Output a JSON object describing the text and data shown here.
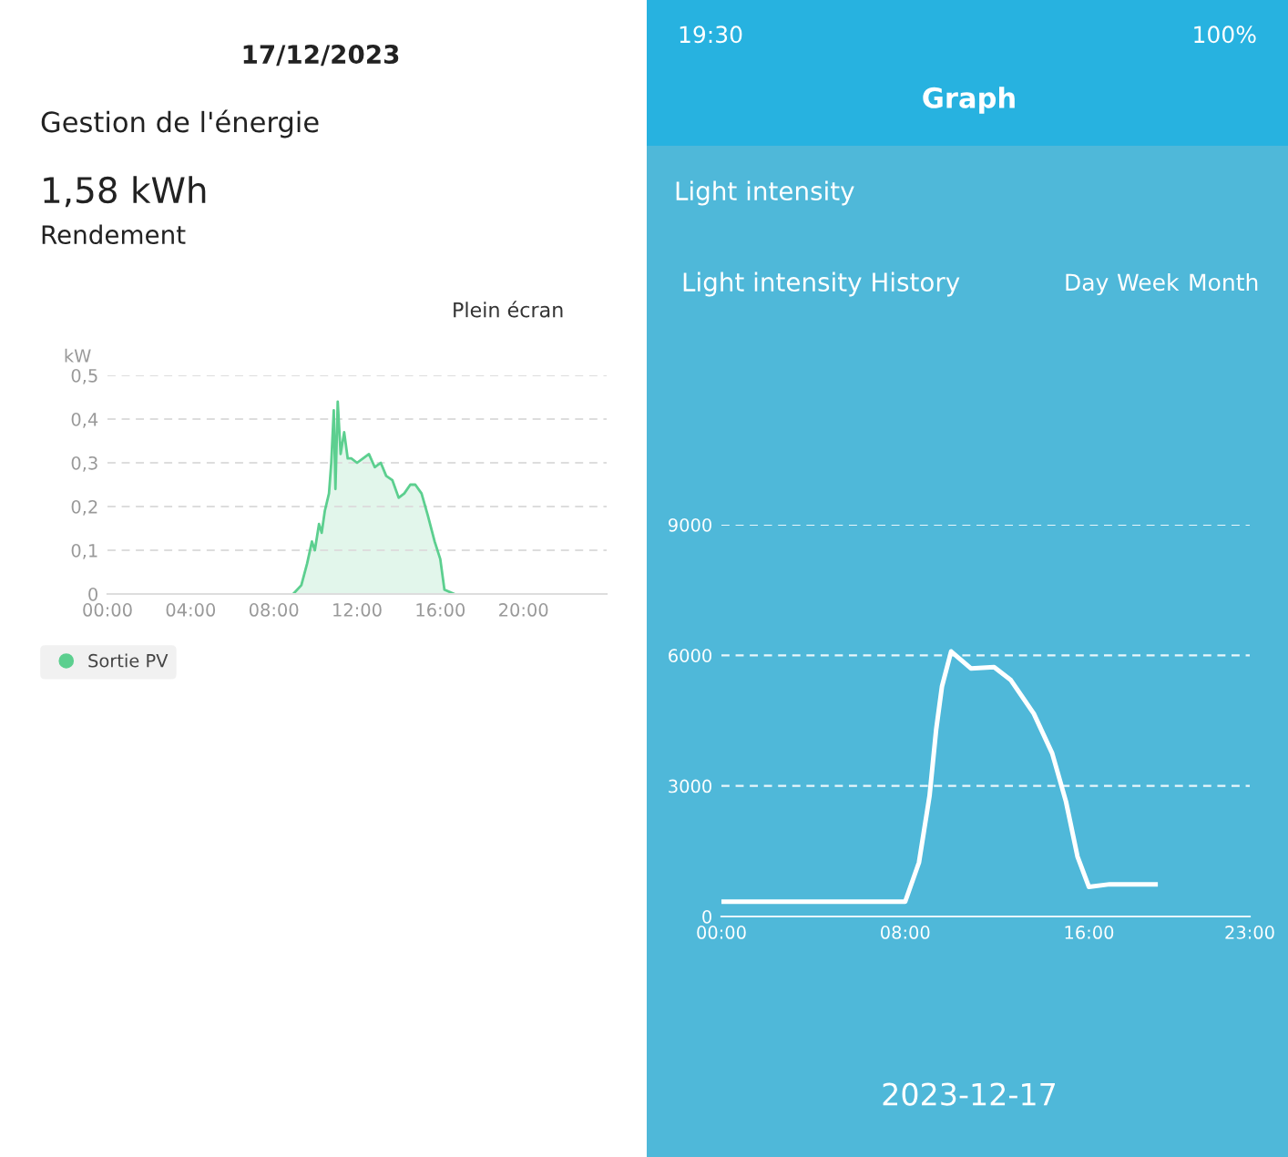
{
  "chart_data": [
    {
      "type": "area",
      "title": "Gestion de l'énergie",
      "ylabel": "kW",
      "annotations": [
        "17/12/2023",
        "1,58 kWh",
        "Rendement",
        "Plein écran"
      ],
      "x": [
        8.93,
        9.32,
        9.6,
        9.83,
        9.97,
        10.17,
        10.3,
        10.45,
        10.65,
        10.76,
        10.88,
        10.96,
        11.07,
        11.21,
        11.38,
        11.55,
        11.72,
        12.0,
        12.29,
        12.57,
        12.85,
        13.14,
        13.4,
        13.7,
        14.0,
        14.27,
        14.56,
        14.8,
        15.1,
        15.4,
        15.73,
        16.0,
        16.2,
        16.67
      ],
      "series": [
        {
          "name": "Sortie PV",
          "color": "#5ccf8f",
          "values": [
            0,
            0.02,
            0.07,
            0.12,
            0.1,
            0.16,
            0.14,
            0.19,
            0.23,
            0.3,
            0.42,
            0.24,
            0.44,
            0.32,
            0.37,
            0.31,
            0.31,
            0.3,
            0.31,
            0.32,
            0.29,
            0.3,
            0.27,
            0.26,
            0.22,
            0.23,
            0.25,
            0.25,
            0.23,
            0.18,
            0.12,
            0.08,
            0.01,
            0
          ]
        }
      ],
      "xlim": [
        0,
        24
      ],
      "xticks": [
        {
          "value": 0,
          "label": "00:00"
        },
        {
          "value": 4,
          "label": "04:00"
        },
        {
          "value": 8,
          "label": "08:00"
        },
        {
          "value": 12,
          "label": "12:00"
        },
        {
          "value": 16,
          "label": "16:00"
        },
        {
          "value": 20,
          "label": "20:00"
        }
      ],
      "ylim": [
        0,
        0.5
      ],
      "yticks": [
        {
          "value": 0,
          "label": "0"
        },
        {
          "value": 0.1,
          "label": "0,1"
        },
        {
          "value": 0.2,
          "label": "0,2"
        },
        {
          "value": 0.3,
          "label": "0,3"
        },
        {
          "value": 0.4,
          "label": "0,4"
        },
        {
          "value": 0.5,
          "label": "0,5"
        }
      ],
      "grid": "y",
      "legend": "bottom left"
    },
    {
      "type": "line",
      "title": "Graph",
      "annotations": [
        "19:30",
        "100%",
        "Light intensity",
        "Light intensity History",
        "Day",
        "Week",
        "Month",
        "2023-12-17"
      ],
      "x": [
        0,
        8.0,
        8.6,
        9.06,
        9.35,
        9.6,
        10.0,
        10.86,
        11.87,
        12.6,
        13.6,
        14.4,
        15.0,
        15.5,
        16.0,
        16.9,
        18.9
      ],
      "series": [
        {
          "color": "#ffffff",
          "values": [
            340,
            340,
            1240,
            2770,
            4300,
            5280,
            6090,
            5700,
            5730,
            5430,
            4660,
            3750,
            2640,
            1380,
            680,
            740,
            740
          ]
        }
      ],
      "xlim": [
        0,
        23
      ],
      "xticks": [
        {
          "value": 0,
          "label": "00:00"
        },
        {
          "value": 8,
          "label": "08:00"
        },
        {
          "value": 16,
          "label": "16:00"
        },
        {
          "value": 23,
          "label": "23:00"
        }
      ],
      "ylim": [
        0,
        9000
      ],
      "yticks": [
        0,
        3000,
        6000,
        9000
      ],
      "grid": "y"
    }
  ]
}
